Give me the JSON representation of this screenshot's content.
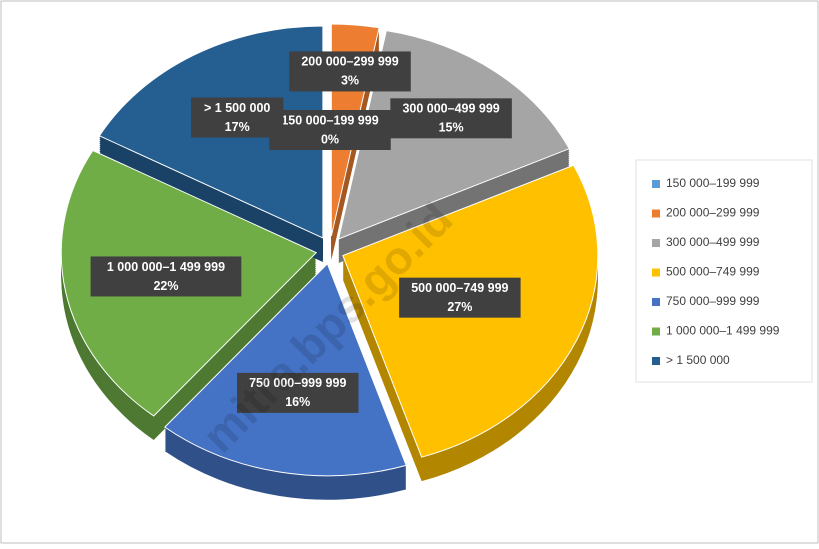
{
  "chart_data": {
    "type": "pie",
    "categories": [
      "150 000–199 999",
      "200 000–299 999",
      "300 000–499 999",
      "500 000–749 999",
      "750 000–999 999",
      "1 000 000–1 499 999",
      "> 1 500 000"
    ],
    "values": [
      0,
      3,
      15,
      27,
      16,
      22,
      17
    ],
    "value_labels": [
      "0%",
      "3%",
      "15%",
      "27%",
      "16%",
      "22%",
      "17%"
    ],
    "colors": [
      "#5b9bd5",
      "#ed7d31",
      "#a5a5a5",
      "#ffc000",
      "#4472c4",
      "#70ad47",
      "#255e91"
    ],
    "legend": "right",
    "watermark": "mitra.bps.go.id"
  }
}
